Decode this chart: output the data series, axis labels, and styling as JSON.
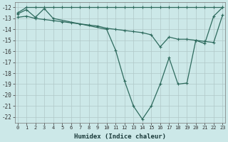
{
  "xlabel": "Humidex (Indice chaleur)",
  "ylabel": "",
  "bg_color": "#cce8e8",
  "grid_color": "#b0c8c8",
  "line_color": "#2e6b5e",
  "x_ticks": [
    0,
    1,
    2,
    3,
    4,
    5,
    6,
    7,
    8,
    9,
    10,
    11,
    12,
    13,
    14,
    15,
    16,
    17,
    18,
    19,
    20,
    21,
    22,
    23
  ],
  "y_ticks": [
    -12,
    -13,
    -14,
    -15,
    -16,
    -17,
    -18,
    -19,
    -20,
    -21,
    -22
  ],
  "xlim": [
    -0.3,
    23.3
  ],
  "ylim": [
    -22.5,
    -11.5
  ],
  "line1_x": [
    0,
    1,
    2,
    3,
    4,
    5,
    6,
    7,
    8,
    9,
    10,
    11,
    12,
    13,
    14,
    15,
    16,
    17,
    18,
    19,
    20,
    21,
    22,
    23
  ],
  "line1_y": [
    -12.5,
    -12.0,
    -12.0,
    -12.0,
    -12.0,
    -12.0,
    -12.0,
    -12.0,
    -12.0,
    -12.0,
    -12.0,
    -12.0,
    -12.0,
    -12.0,
    -12.0,
    -12.0,
    -12.0,
    -12.0,
    -12.0,
    -12.0,
    -12.0,
    -12.0,
    -12.0,
    -12.0
  ],
  "line2_x": [
    0,
    1,
    2,
    3,
    4,
    10,
    11,
    12,
    13,
    14,
    15,
    16,
    17,
    18,
    19,
    20,
    21,
    22,
    23
  ],
  "line2_y": [
    -12.6,
    -12.2,
    -12.9,
    -12.1,
    -13.0,
    -14.0,
    -15.9,
    -18.7,
    -21.0,
    -22.2,
    -21.0,
    -19.0,
    -16.6,
    -19.0,
    -18.9,
    -15.0,
    -15.3,
    -12.8,
    -12.0
  ],
  "line3_x": [
    0,
    1,
    2,
    3,
    4,
    5,
    6,
    7,
    8,
    9,
    10,
    11,
    12,
    13,
    14,
    15,
    16,
    17,
    18,
    19,
    20,
    21,
    22,
    23
  ],
  "line3_y": [
    -12.9,
    -12.8,
    -13.0,
    -13.1,
    -13.2,
    -13.3,
    -13.4,
    -13.5,
    -13.6,
    -13.7,
    -13.9,
    -14.0,
    -14.1,
    -14.2,
    -14.3,
    -14.5,
    -15.6,
    -14.7,
    -14.9,
    -14.9,
    -15.0,
    -15.1,
    -15.2,
    -12.7
  ]
}
